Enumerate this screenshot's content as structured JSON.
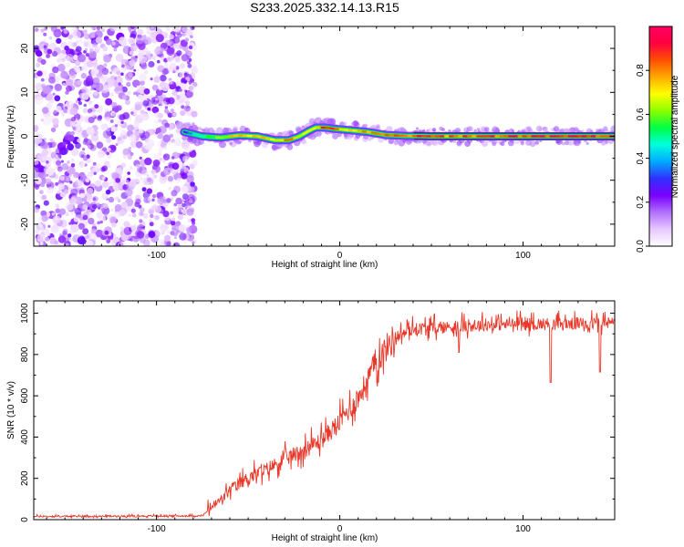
{
  "chart_data": [
    {
      "type": "heatmap",
      "title": "S233.2025.332.14.13.R15",
      "xlabel": "Height of straight line (km)",
      "ylabel": "Frequency (Hz)",
      "xlim": [
        -167,
        150
      ],
      "ylim": [
        -25,
        25
      ],
      "xticks": [
        -100,
        0,
        100
      ],
      "xtick_labels": [
        "-100",
        "0",
        "100"
      ],
      "yticks": [
        -20,
        -10,
        0,
        10,
        20
      ],
      "ytick_labels": [
        "-20",
        "-10",
        "0",
        "10",
        "20"
      ],
      "colorbar": {
        "label": "Normalized spectral amplitude",
        "range": [
          0,
          1
        ],
        "ticks": [
          0.0,
          0.2,
          0.4,
          0.6,
          0.8
        ],
        "tick_labels": [
          "0.0",
          "0.2",
          "0.4",
          "0.6",
          "0.8"
        ],
        "colormap": [
          "#ffffff",
          "#e8c8ff",
          "#b070ff",
          "#7a00ff",
          "#3030ff",
          "#00aaff",
          "#00ffdd",
          "#00ff44",
          "#88ff00",
          "#ffff00",
          "#ffaa00",
          "#ff5000",
          "#ff0040",
          "#ff0060"
        ]
      },
      "noise_region_x": [
        -167,
        -80
      ],
      "signal_trace": {
        "x": [
          -85,
          -75,
          -65,
          -55,
          -45,
          -35,
          -28,
          -22,
          -17,
          -13,
          -8,
          -3,
          5,
          15,
          25,
          35,
          50,
          70,
          90,
          110,
          130,
          150
        ],
        "freq": [
          1.0,
          0.0,
          -0.3,
          0.2,
          0.0,
          -0.9,
          -0.9,
          0.0,
          1.2,
          2.0,
          2.0,
          1.7,
          1.4,
          1.0,
          0.3,
          0.1,
          0.0,
          0.0,
          0.0,
          0.0,
          0.0,
          0.0
        ],
        "amplitude": [
          0.35,
          0.5,
          0.7,
          0.8,
          0.85,
          0.8,
          0.85,
          0.7,
          0.75,
          0.85,
          0.9,
          0.85,
          0.8,
          0.8,
          0.85,
          0.9,
          0.9,
          0.9,
          0.95,
          0.95,
          0.95,
          0.95
        ]
      }
    },
    {
      "type": "line",
      "title": "",
      "xlabel": "Height of straight line (km)",
      "ylabel": "SNR (10 * v/v)",
      "xlim": [
        -167,
        150
      ],
      "ylim": [
        0,
        1060
      ],
      "xticks": [
        -100,
        0,
        100
      ],
      "xtick_labels": [
        "-100",
        "0",
        "100"
      ],
      "yticks": [
        0,
        200,
        400,
        600,
        800,
        1000
      ],
      "ytick_labels": [
        "0",
        "200",
        "400",
        "600",
        "800",
        "1000"
      ],
      "color": "#e8382a",
      "envelope": {
        "x": [
          -167,
          -75,
          -70,
          -65,
          -60,
          -55,
          -50,
          -40,
          -30,
          -20,
          -10,
          0,
          10,
          20,
          30,
          40,
          60,
          80,
          100,
          120,
          150
        ],
        "y": [
          15,
          18,
          60,
          90,
          140,
          170,
          200,
          240,
          290,
          330,
          380,
          470,
          580,
          760,
          880,
          920,
          930,
          940,
          945,
          945,
          950
        ]
      },
      "dips": [
        {
          "x": 65,
          "y": 810
        },
        {
          "x": 115,
          "y": 665
        },
        {
          "x": 142,
          "y": 715
        }
      ]
    }
  ]
}
